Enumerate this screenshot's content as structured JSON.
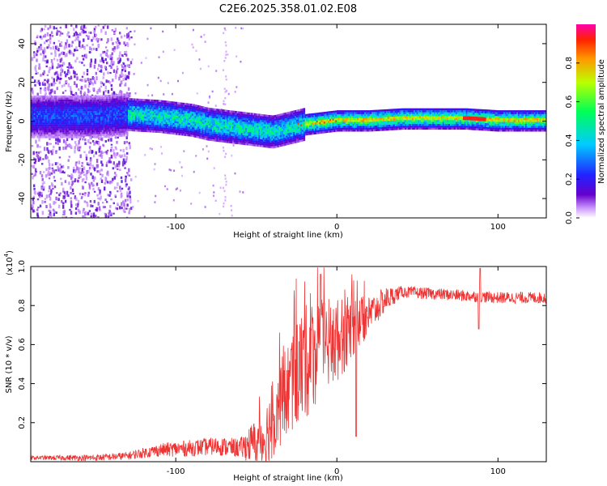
{
  "title": "C2E6.2025.358.01.02.E08",
  "chart_data": [
    {
      "type": "heatmap",
      "name": "spectrogram",
      "xlabel": "Height of straight line (km)",
      "ylabel": "Frequency (Hz)",
      "xlim": [
        -190,
        130
      ],
      "ylim": [
        -50,
        50
      ],
      "xticks": [
        -100,
        0,
        100
      ],
      "yticks": [
        -40,
        -20,
        0,
        20,
        40
      ],
      "ridge": {
        "x": [
          -190,
          -150,
          -130,
          -110,
          -100,
          -90,
          -80,
          -70,
          -60,
          -50,
          -40,
          -30,
          -20,
          -10,
          0,
          10,
          20,
          40,
          60,
          80,
          100,
          130
        ],
        "freq": [
          3,
          3,
          4,
          3,
          2,
          1,
          -1,
          -2,
          -3,
          -4,
          -5,
          -3,
          -1,
          0,
          1,
          1,
          1,
          2,
          2,
          2,
          1,
          1
        ]
      },
      "colorbar": {
        "label": "Normalized spectral amplitude",
        "range": [
          0.0,
          1.0
        ],
        "ticks": [
          0.0,
          0.2,
          0.4,
          0.6,
          0.8
        ],
        "tick_labels": [
          "0.0",
          "0.2",
          "0.4",
          "0.6",
          "0.8"
        ]
      }
    },
    {
      "type": "line",
      "name": "snr",
      "xlabel": "Height of straight line (km)",
      "ylabel": "SNR (10 * v/v)",
      "multiplier_label": "(x10",
      "multiplier_exp": "4",
      "xlim": [
        -190,
        130
      ],
      "ylim": [
        0,
        1.0
      ],
      "xticks": [
        -100,
        0,
        100
      ],
      "yticks": [
        0.2,
        0.4,
        0.6,
        0.8,
        1.0
      ],
      "ytick_labels": [
        "0.2",
        "0.4",
        "0.6",
        "0.8",
        "1.0"
      ],
      "color": "#ee3333",
      "envelope": {
        "x": [
          -190,
          -150,
          -130,
          -110,
          -90,
          -75,
          -60,
          -45,
          -35,
          -25,
          -15,
          -5,
          0,
          5,
          10,
          15,
          20,
          30,
          40,
          60,
          80,
          100,
          130
        ],
        "value": [
          0.02,
          0.02,
          0.03,
          0.06,
          0.07,
          0.08,
          0.07,
          0.12,
          0.3,
          0.45,
          0.55,
          0.6,
          0.62,
          0.65,
          0.7,
          0.72,
          0.75,
          0.83,
          0.87,
          0.86,
          0.85,
          0.84,
          0.84
        ]
      },
      "noise_amp": {
        "x": [
          -190,
          -130,
          -100,
          -60,
          -40,
          -20,
          0,
          20,
          40,
          130
        ],
        "value": [
          0.01,
          0.02,
          0.04,
          0.05,
          0.2,
          0.3,
          0.22,
          0.1,
          0.03,
          0.03
        ]
      },
      "spikes": [
        {
          "x": -10,
          "value": 0.96
        },
        {
          "x": 12,
          "value": 0.13
        },
        {
          "x": 88,
          "value": 0.68
        },
        {
          "x": 89,
          "value": 0.99
        }
      ]
    }
  ]
}
